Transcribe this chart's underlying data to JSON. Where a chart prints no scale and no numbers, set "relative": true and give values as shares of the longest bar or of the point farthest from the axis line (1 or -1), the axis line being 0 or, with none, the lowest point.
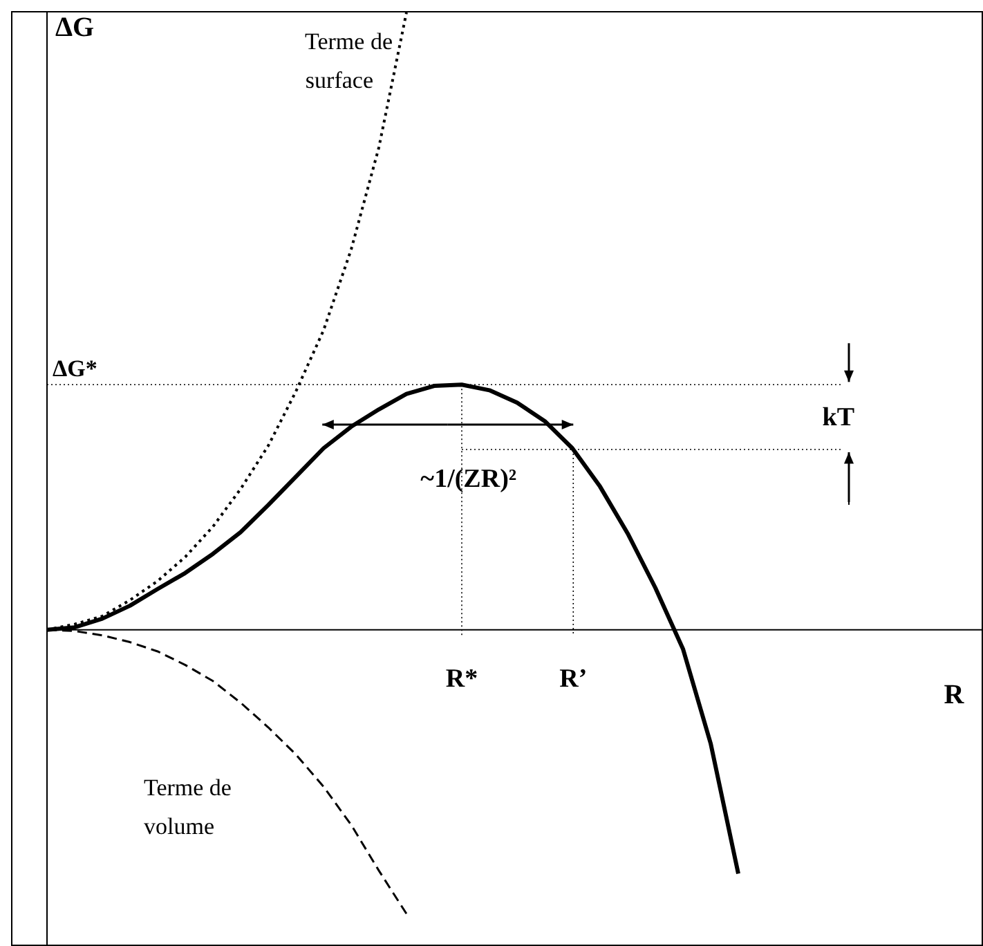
{
  "chart_data": {
    "type": "line",
    "relative": true,
    "legend": false,
    "ylabel": "ΔG",
    "categories": [
      null,
      null,
      null,
      null,
      null,
      null,
      null,
      null,
      null,
      null,
      null,
      null,
      null,
      null,
      null,
      null,
      null,
      null,
      null,
      null,
      null,
      null,
      null,
      null,
      null,
      null
    ],
    "series": [
      {
        "color": "#000000",
        "line_style": "solid",
        "values": [
          0,
          0.004,
          0.018,
          0.039,
          0.066,
          0.092,
          0.123,
          0.158,
          0.202,
          0.248,
          0.294,
          0.329,
          0.357,
          0.382,
          0.395,
          0.397,
          0.388,
          0.368,
          0.338,
          0.294,
          0.232,
          0.156,
          0.068,
          -0.031,
          -0.184,
          -0.395
        ]
      },
      {
        "name": "Terme de surface",
        "color": "#000000",
        "line_style": "dotted",
        "values": [
          0,
          0.009,
          0.022,
          0.048,
          0.079,
          0.118,
          0.167,
          0.228,
          0.298,
          0.386,
          0.485,
          0.616,
          0.781,
          1,
          null,
          null,
          null,
          null,
          null,
          null,
          null,
          null,
          null,
          null,
          null,
          null
        ]
      },
      {
        "name": "Terme de volume",
        "color": "#000000",
        "line_style": "dashed",
        "values": [
          0,
          -0.002,
          -0.009,
          -0.02,
          -0.035,
          -0.057,
          -0.083,
          -0.118,
          -0.158,
          -0.202,
          -0.254,
          -0.316,
          -0.39,
          -0.46,
          null,
          null,
          null,
          null,
          null,
          null,
          null,
          null,
          null,
          null,
          null,
          null
        ]
      }
    ],
    "ref_lines": [
      {
        "axis": "y",
        "value": 0.397,
        "label": "ΔG*",
        "line_style": "dotted"
      },
      {
        "axis": "y",
        "value": 0.292,
        "line_style": "dotted"
      }
    ],
    "annotations": [
      "~1/(ZR)²",
      "kT",
      "R*",
      "R’",
      "R"
    ]
  }
}
